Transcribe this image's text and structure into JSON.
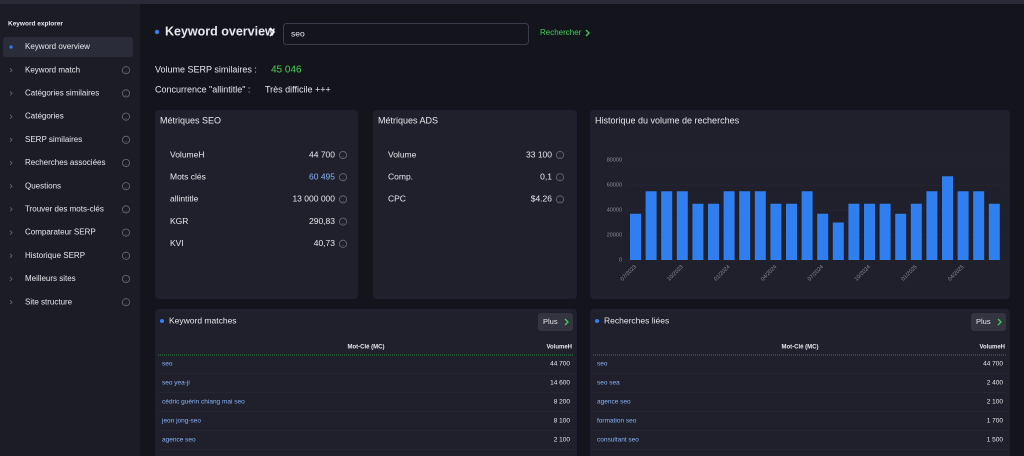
{
  "sidebar": {
    "title": "Keyword explorer",
    "items": [
      "Keyword overview",
      "Keyword match",
      "Catégories similaires",
      "Catégories",
      "SERP similaires",
      "Recherches associées",
      "Questions",
      "Trouver des mots-clés",
      "Comparateur SERP",
      "Historique SERP",
      "Meilleurs sites",
      "Site structure"
    ]
  },
  "header": {
    "title": "Keyword overview",
    "search_value": "seo",
    "search_button": "Rechercher"
  },
  "summary": {
    "serp_label": "Volume SERP similaires :",
    "serp_value": "45 046",
    "competition_label": "Concurrence \"allintitle\" :",
    "competition_value": "Très difficile +++"
  },
  "seo_metrics": {
    "title": "Métriques SEO",
    "rows": [
      [
        "VolumeH",
        "44 700"
      ],
      [
        "Mots clés",
        "60 495"
      ],
      [
        "allintitle",
        "13 000 000"
      ],
      [
        "KGR",
        "290,83"
      ],
      [
        "KVI",
        "40,73"
      ]
    ]
  },
  "ads_metrics": {
    "title": "Métriques ADS",
    "rows": [
      [
        "Volume",
        "33 100"
      ],
      [
        "Comp.",
        "0,1"
      ],
      [
        "CPC",
        "$4.26"
      ]
    ]
  },
  "chart_data": {
    "type": "bar",
    "title": "Historique du volume de recherches",
    "categories": [
      "07/2023",
      null,
      null,
      "10/2023",
      null,
      null,
      "01/2024",
      null,
      null,
      "04/2024",
      null,
      null,
      "07/2024",
      null,
      null,
      "10/2024",
      null,
      null,
      "01/2025",
      null,
      null,
      "04/2025",
      null,
      null
    ],
    "values": [
      37000,
      55000,
      55000,
      55000,
      45000,
      45000,
      55000,
      55000,
      55000,
      45000,
      45000,
      55000,
      37000,
      30000,
      45000,
      45000,
      45000,
      37000,
      45000,
      55000,
      67000,
      55000,
      55000,
      45000
    ],
    "color": "#2f7ff0",
    "ylim": [
      0,
      80000
    ],
    "yticks": [
      0,
      20000,
      40000,
      60000,
      80000
    ]
  },
  "keyword_matches": {
    "title": "Keyword matches",
    "button": "Plus",
    "columns": [
      "Mot-Clé (MC)",
      "VolumeH"
    ],
    "rows": [
      [
        "seo",
        "44 700"
      ],
      [
        "seo yea-ji",
        "14 600"
      ],
      [
        "cédric guérin chiang mai seo",
        "8 200"
      ],
      [
        "jeon jong-seo",
        "8 100"
      ],
      [
        "agence seo",
        "2 100"
      ]
    ]
  },
  "related_searches": {
    "title": "Recherches liées",
    "button": "Plus",
    "columns": [
      "Mot-Clé (MC)",
      "VolumeH"
    ],
    "rows": [
      [
        "seo",
        "44 700"
      ],
      [
        "seo sea",
        "2 400"
      ],
      [
        "agence seo",
        "2 100"
      ],
      [
        "formation seo",
        "1 700"
      ],
      [
        "consultant seo",
        "1 500"
      ]
    ]
  }
}
